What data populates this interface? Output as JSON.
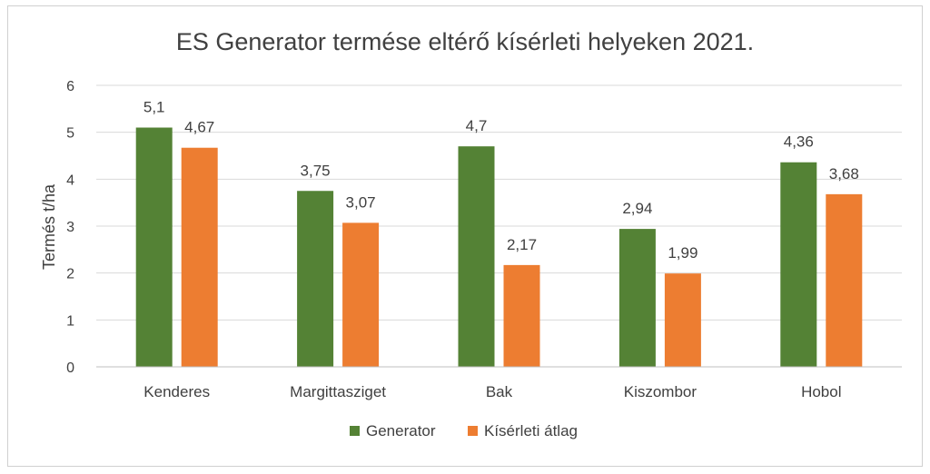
{
  "chart_data": {
    "type": "bar",
    "title": "ES Generator termése eltérő kísérleti helyeken 2021.",
    "xlabel": "",
    "ylabel": "Termés t/ha",
    "ylim": [
      0,
      6
    ],
    "yticks": [
      0,
      1,
      2,
      3,
      4,
      5,
      6
    ],
    "categories": [
      "Kenderes",
      "Margittasziget",
      "Bak",
      "Kiszombor",
      "Hobol"
    ],
    "series": [
      {
        "name": "Generator",
        "color": "#548235",
        "values": [
          5.1,
          3.75,
          4.7,
          2.94,
          4.36
        ],
        "labels": [
          "5,1",
          "3,75",
          "4,7",
          "2,94",
          "4,36"
        ]
      },
      {
        "name": "Kísérleti átlag",
        "color": "#ed7d31",
        "values": [
          4.67,
          3.07,
          2.17,
          1.99,
          3.68
        ],
        "labels": [
          "4,67",
          "3,07",
          "2,17",
          "1,99",
          "3,68"
        ]
      }
    ],
    "grid": true,
    "legend": "bottom"
  }
}
